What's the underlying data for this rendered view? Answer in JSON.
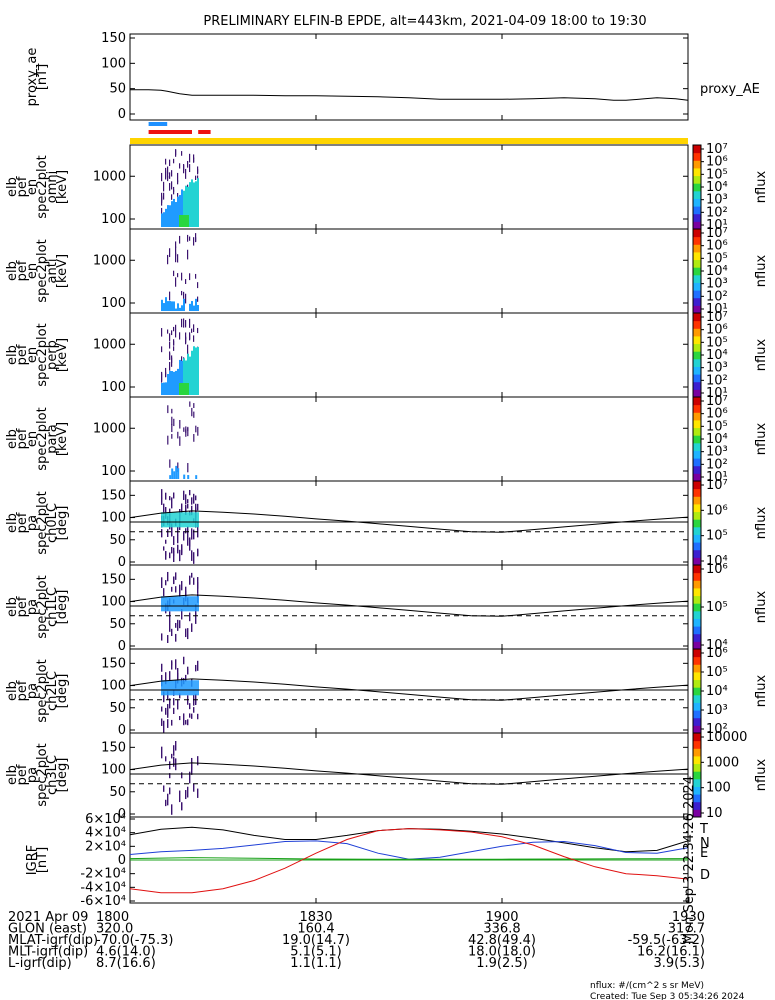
{
  "title": "PRELIMINARY ELFIN-B EPDE, alt=443km, 2021-04-09 18:00 to 19:30",
  "colors": {
    "black": "#000000",
    "blue": "#1f3fd6",
    "red": "#e01010",
    "green": "#18a018",
    "bar_yellow": "#ffd400",
    "bar_blue": "#1e90ff",
    "bar_red": "#ee1111",
    "spec_purple": "#3c1470",
    "spec_blue": "#1f9bff",
    "spec_cyan": "#22d3d3",
    "spec_green": "#2ad63f"
  },
  "chart_data": [
    {
      "type": "line",
      "panel": "proxy_ae",
      "ylabel": [
        "proxy_ae",
        "[nT]"
      ],
      "ylim": [
        0,
        150
      ],
      "yticks": [
        "0",
        "50",
        "100",
        "150"
      ],
      "series": [
        {
          "name": "proxy_AE",
          "x": [
            1800,
            1803,
            1805,
            1806,
            1808,
            1810,
            1815,
            1820,
            1825,
            1830,
            1835,
            1840,
            1845,
            1850,
            1855,
            1900,
            1905,
            1910,
            1915,
            1918,
            1920,
            1923,
            1925,
            1928,
            1930
          ],
          "y": [
            48,
            48,
            47,
            45,
            40,
            37,
            37,
            37,
            36,
            36,
            35,
            34,
            32,
            29,
            29,
            29,
            30,
            32,
            30,
            27,
            27,
            30,
            32,
            30,
            27
          ]
        }
      ]
    },
    {
      "type": "heatmap",
      "panel": "spec_omni",
      "ylabel": [
        "elb",
        "pef",
        "en",
        "spec2plot",
        "omni",
        "[keV]"
      ],
      "yscale": "log",
      "yticks": [
        "100",
        "1000"
      ],
      "colorbar": {
        "label": "nflux",
        "ticks": [
          "10¹",
          "10²",
          "10³",
          "10⁴",
          "10⁵",
          "10⁶",
          "10⁷"
        ]
      },
      "active_interval": [
        1805,
        1811
      ],
      "intensity": "high"
    },
    {
      "type": "heatmap",
      "panel": "spec_anti",
      "ylabel": [
        "elb",
        "pef",
        "en",
        "spec2plot",
        "anti",
        "[keV]"
      ],
      "yscale": "log",
      "yticks": [
        "100",
        "1000"
      ],
      "colorbar": {
        "label": "nflux",
        "ticks": [
          "10¹",
          "10²",
          "10³",
          "10⁴",
          "10⁵",
          "10⁶",
          "10⁷"
        ]
      },
      "active_interval": [
        1805,
        1811
      ],
      "intensity": "low"
    },
    {
      "type": "heatmap",
      "panel": "spec_perp",
      "ylabel": [
        "elb",
        "pef",
        "en",
        "spec2plot",
        "perp",
        "[keV]"
      ],
      "yscale": "log",
      "yticks": [
        "100",
        "1000"
      ],
      "colorbar": {
        "label": "nflux",
        "ticks": [
          "10¹",
          "10²",
          "10³",
          "10⁴",
          "10⁵",
          "10⁶",
          "10⁷"
        ]
      },
      "active_interval": [
        1805,
        1811
      ],
      "intensity": "high"
    },
    {
      "type": "heatmap",
      "panel": "spec_para",
      "ylabel": [
        "elb",
        "pef",
        "en",
        "spec2plot",
        "para",
        "[keV]"
      ],
      "yscale": "log",
      "yticks": [
        "100",
        "1000"
      ],
      "colorbar": {
        "label": "nflux",
        "ticks": [
          "10¹",
          "10²",
          "10³",
          "10⁴",
          "10⁵",
          "10⁶",
          "10⁷"
        ]
      },
      "active_interval": [
        1806,
        1811
      ],
      "intensity": "low"
    },
    {
      "type": "heatmap",
      "panel": "pa_ch0",
      "ylabel": [
        "elb",
        "pef",
        "pa",
        "spec2plot",
        "ch0LC",
        "[deg]"
      ],
      "ylim": [
        0,
        180
      ],
      "yticks": [
        "0",
        "50",
        "100",
        "150"
      ],
      "colorbar": {
        "label": "nflux",
        "ticks": [
          "10⁴",
          "10⁵",
          "10⁶",
          "10⁷"
        ]
      },
      "active_interval": [
        1805,
        1811
      ],
      "intensity": "high"
    },
    {
      "type": "heatmap",
      "panel": "pa_ch1",
      "ylabel": [
        "elb",
        "pef",
        "pa",
        "spec2plot",
        "ch1LC",
        "[deg]"
      ],
      "ylim": [
        0,
        180
      ],
      "yticks": [
        "0",
        "50",
        "100",
        "150"
      ],
      "colorbar": {
        "label": "nflux",
        "ticks": [
          "10⁴",
          "10⁵",
          "10⁶"
        ]
      },
      "active_interval": [
        1805,
        1811
      ],
      "intensity": "medium"
    },
    {
      "type": "heatmap",
      "panel": "pa_ch2",
      "ylabel": [
        "elb",
        "pef",
        "pa",
        "spec2plot",
        "ch2LC",
        "[deg]"
      ],
      "ylim": [
        0,
        180
      ],
      "yticks": [
        "0",
        "50",
        "100",
        "150"
      ],
      "colorbar": {
        "label": "nflux",
        "ticks": [
          "10²",
          "10³",
          "10⁴",
          "10⁵",
          "10⁶"
        ]
      },
      "active_interval": [
        1805,
        1811
      ],
      "intensity": "medium"
    },
    {
      "type": "heatmap",
      "panel": "pa_ch3",
      "ylabel": [
        "elb",
        "pef",
        "pa",
        "spec2plot",
        "ch3LC",
        "[deg]"
      ],
      "ylim": [
        0,
        180
      ],
      "yticks": [
        "0",
        "50",
        "100",
        "150"
      ],
      "colorbar": {
        "label": "nflux",
        "ticks": [
          "10",
          "100",
          "1000",
          "10000"
        ]
      },
      "active_interval": [
        1805,
        1811
      ],
      "intensity": "low"
    },
    {
      "type": "line",
      "panel": "igrf",
      "ylabel": [
        "IGRF",
        "[nT]"
      ],
      "ylim": [
        -60000,
        60000
      ],
      "yticks": [
        "-6×10⁴",
        "-4×10⁴",
        "-2×10⁴",
        "0",
        "2×10⁴",
        "4×10⁴",
        "6×10⁴"
      ],
      "series": [
        {
          "name": "T",
          "color": "#000000",
          "x": [
            1800,
            1805,
            1810,
            1815,
            1820,
            1825,
            1830,
            1835,
            1840,
            1845,
            1850,
            1855,
            1900,
            1905,
            1910,
            1915,
            1920,
            1925,
            1930
          ],
          "y": [
            37000,
            45000,
            48000,
            44000,
            36000,
            30000,
            30000,
            36000,
            43000,
            46000,
            45000,
            42000,
            38000,
            32000,
            25000,
            18000,
            12000,
            14000,
            28000
          ]
        },
        {
          "name": "N",
          "color": "#1f3fd6",
          "x": [
            1800,
            1805,
            1810,
            1815,
            1820,
            1825,
            1830,
            1835,
            1840,
            1845,
            1850,
            1855,
            1900,
            1905,
            1910,
            1915,
            1920,
            1925,
            1930
          ],
          "y": [
            8000,
            12000,
            14000,
            17000,
            22000,
            27000,
            28000,
            24000,
            10000,
            1000,
            4000,
            12000,
            20000,
            26000,
            27000,
            21000,
            11000,
            10000,
            18000
          ]
        },
        {
          "name": "E",
          "color": "#18a018",
          "x": [
            1800,
            1810,
            1820,
            1830,
            1840,
            1850,
            1900,
            1910,
            1920,
            1930
          ],
          "y": [
            2000,
            3500,
            2500,
            1500,
            1000,
            1000,
            1200,
            1500,
            1800,
            2000
          ]
        },
        {
          "name": "D",
          "color": "#e01010",
          "x": [
            1800,
            1805,
            1810,
            1815,
            1820,
            1825,
            1830,
            1835,
            1840,
            1845,
            1850,
            1855,
            1900,
            1905,
            1910,
            1915,
            1920,
            1925,
            1930
          ],
          "y": [
            -42000,
            -48000,
            -48000,
            -42000,
            -30000,
            -12000,
            10000,
            30000,
            43000,
            46000,
            44000,
            41000,
            34000,
            22000,
            5000,
            -10000,
            -20000,
            -23000,
            -28000
          ]
        }
      ]
    }
  ],
  "flags": {
    "yellow_bar": "full",
    "blue_segment": [
      1803,
      1806
    ],
    "red_segments": [
      [
        1803,
        1810
      ],
      [
        1811,
        1813
      ]
    ]
  },
  "model_curves": {
    "x": [
      1800,
      1805,
      1810,
      1815,
      1820,
      1825,
      1830,
      1835,
      1840,
      1845,
      1850,
      1855,
      1900,
      1905,
      1910,
      1915,
      1920,
      1925,
      1930
    ],
    "upper": [
      100,
      110,
      115,
      112,
      108,
      103,
      97,
      92,
      86,
      80,
      74,
      68,
      67,
      73,
      79,
      85,
      91,
      96,
      101
    ],
    "mid_level": 90,
    "dashed_level": 68
  },
  "time_axis": {
    "ticks": [
      "1800",
      "1830",
      "1900",
      "1930"
    ],
    "tick_minutes": [
      1800,
      1830,
      1900,
      1930
    ],
    "start_minute": 1800,
    "end_minute": 1930
  },
  "annotation_rows": [
    {
      "label": "2021 Apr 09",
      "values": [
        "1800",
        "1830",
        "1900",
        "1930"
      ]
    },
    {
      "label": "GLON (east)",
      "values": [
        "320.0",
        "160.4",
        "336.8",
        "317.7"
      ]
    },
    {
      "label": "MLAT-igrf(dip)",
      "values": [
        "-70.0(-75.3)",
        "19.0(14.7)",
        "42.8(49.4)",
        "-59.5(-63.2)"
      ]
    },
    {
      "label": "MLT-igrf(dip)",
      "values": [
        "4.6(14.0)",
        "5.1(5.1)",
        "18.0(18.0)",
        "16.2(16.1)"
      ]
    },
    {
      "label": "L-igrf(dip)",
      "values": [
        "8.7(16.6)",
        "1.1(1.1)",
        "1.9(2.5)",
        "3.9(5.3)"
      ]
    }
  ],
  "footer": {
    "units": "nflux: #/(cm^2 s sr MeV)",
    "created": "Created: Tue Sep  3 05:34:26 2024"
  },
  "side_stamp": "Mon Sep  3 22:34:26 2024"
}
